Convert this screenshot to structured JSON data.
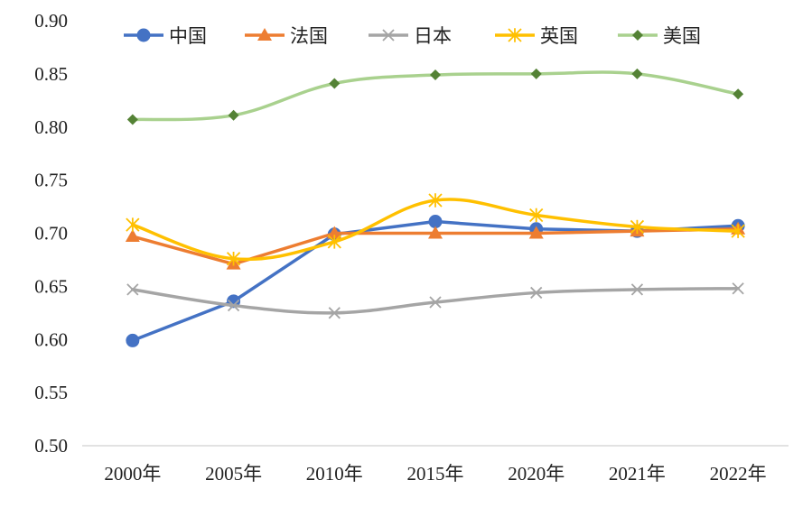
{
  "chart_data": {
    "type": "line",
    "title": "",
    "xlabel": "",
    "ylabel": "",
    "categories": [
      "2000年",
      "2005年",
      "2010年",
      "2015年",
      "2020年",
      "2021年",
      "2022年"
    ],
    "ylim": [
      0.5,
      0.9
    ],
    "yticks": [
      "0.50",
      "0.55",
      "0.60",
      "0.65",
      "0.70",
      "0.75",
      "0.80",
      "0.85",
      "0.90"
    ],
    "grid": false,
    "legend_position": "top",
    "series": [
      {
        "name": "中国",
        "color": "#4472C4",
        "marker": "circle",
        "smooth": false,
        "values": [
          0.599,
          0.636,
          0.699,
          0.711,
          0.704,
          0.702,
          0.707
        ]
      },
      {
        "name": "法国",
        "color": "#ED7D31",
        "marker": "triangle",
        "smooth": false,
        "values": [
          0.697,
          0.671,
          0.7,
          0.7,
          0.7,
          0.702,
          0.704
        ]
      },
      {
        "name": "日本",
        "color": "#A5A5A5",
        "marker": "x",
        "smooth": true,
        "values": [
          0.647,
          0.632,
          0.625,
          0.635,
          0.644,
          0.647,
          0.648
        ]
      },
      {
        "name": "英国",
        "color": "#FFC000",
        "marker": "star",
        "smooth": true,
        "values": [
          0.708,
          0.676,
          0.692,
          0.731,
          0.717,
          0.706,
          0.702
        ]
      },
      {
        "name": "美国",
        "color": "#A9D18E",
        "marker_color": "#548235",
        "marker": "diamond",
        "smooth": true,
        "values": [
          0.807,
          0.811,
          0.841,
          0.849,
          0.85,
          0.85,
          0.831
        ]
      }
    ]
  }
}
